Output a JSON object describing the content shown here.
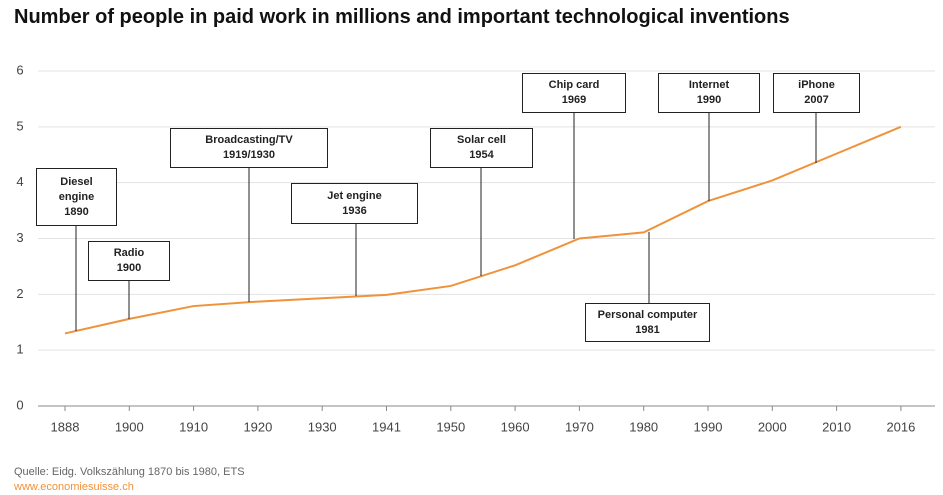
{
  "chart_data": {
    "type": "line",
    "title": "Number of people in paid work in millions and important technological inventions",
    "categories": [
      "1888",
      "1900",
      "1910",
      "1920",
      "1930",
      "1941",
      "1950",
      "1960",
      "1970",
      "1980",
      "1990",
      "2000",
      "2010",
      "2016"
    ],
    "series": [
      {
        "color": "#f0923a",
        "values": [
          1.3,
          1.56,
          1.79,
          1.87,
          1.93,
          1.99,
          2.15,
          2.52,
          3.0,
          3.11,
          3.67,
          4.04,
          4.52,
          5.0
        ]
      }
    ],
    "ylim": [
      0,
      6
    ],
    "yticks": [
      0,
      1,
      2,
      3,
      4,
      5,
      6
    ],
    "grid": true,
    "annotations": [
      {
        "label": "Diesel engine",
        "year": "1890"
      },
      {
        "label": "Radio",
        "year": "1900"
      },
      {
        "label": "Broadcasting/TV",
        "year": "1919/1930"
      },
      {
        "label": "Jet engine",
        "year": "1936"
      },
      {
        "label": "Solar cell",
        "year": "1954"
      },
      {
        "label": "Chip card",
        "year": "1969"
      },
      {
        "label": "Personal computer",
        "year": "1981"
      },
      {
        "label": "Internet",
        "year": "1990"
      },
      {
        "label": "iPhone",
        "year": "2007"
      }
    ],
    "source": "Quelle: Eidg. Volkszählung 1870 bis 1980, ETS",
    "website": "www.economiesuisse.ch"
  }
}
